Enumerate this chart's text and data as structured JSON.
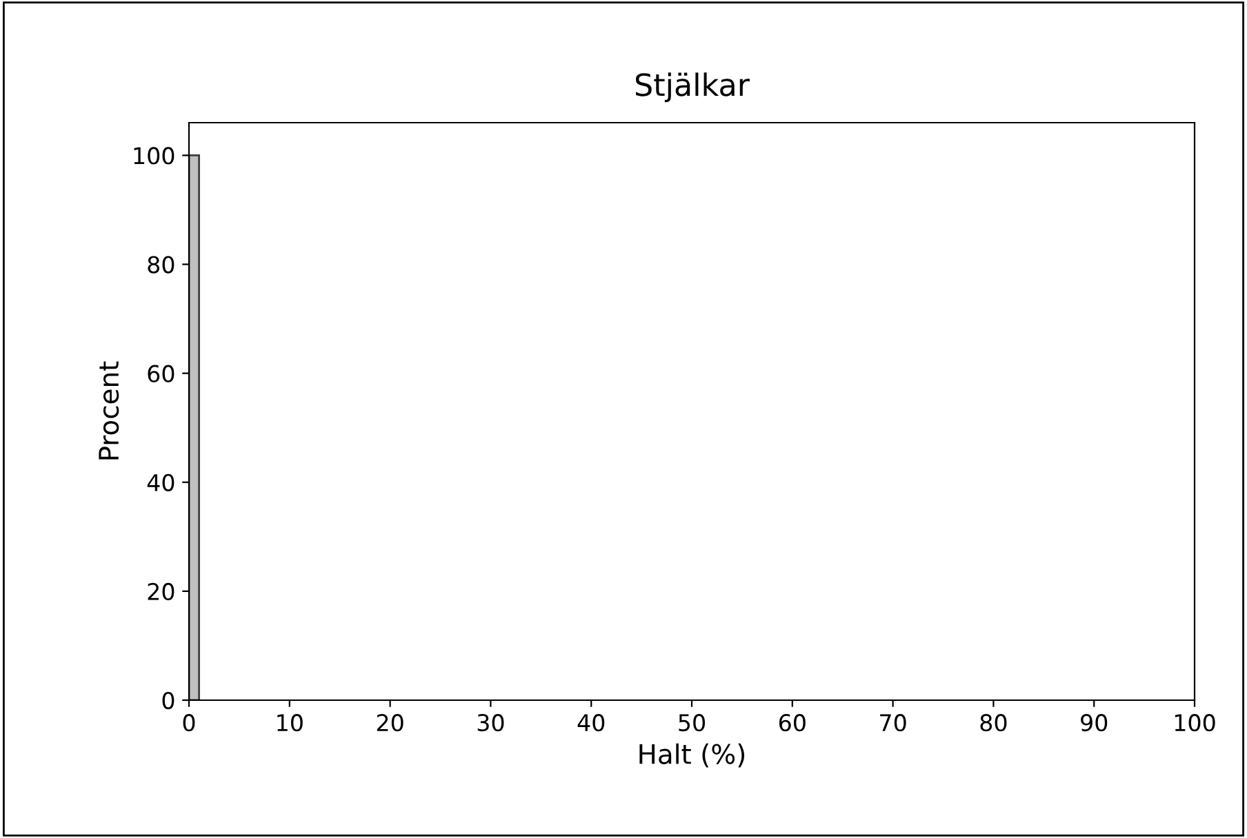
{
  "chart_data": {
    "type": "histogram",
    "title": "Stjälkar",
    "xlabel": "Halt (%)",
    "ylabel": "Procent",
    "bins": [
      0,
      1
    ],
    "values": [
      100
    ],
    "color": "#c0c0c0",
    "xlim": [
      0,
      100
    ],
    "xticks": [
      0,
      10,
      20,
      30,
      40,
      50,
      60,
      70,
      80,
      90,
      100
    ],
    "ylim": [
      0,
      106
    ],
    "yticks": [
      0,
      20,
      40,
      60,
      80,
      100
    ],
    "grid": false
  }
}
